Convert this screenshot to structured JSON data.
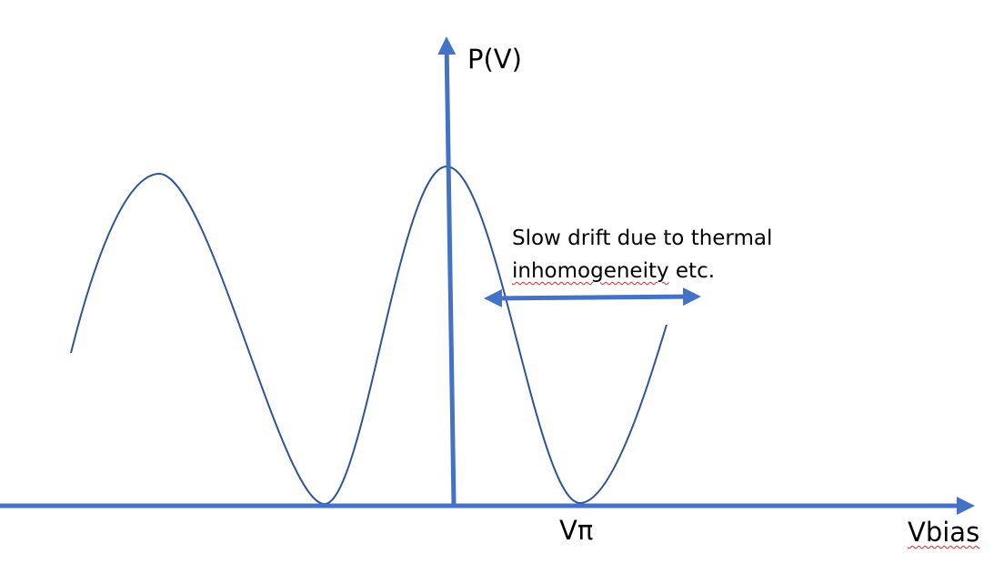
{
  "diagram": {
    "y_axis_label": "P(V)",
    "x_axis_label": "Vbias",
    "vpi_label": "Vπ",
    "annotation": {
      "line1": "Slow drift due to thermal",
      "line2_word": "inhomogeneity",
      "line2_rest": " etc."
    },
    "colors": {
      "axis": "#4472c4",
      "curve": "#2f5597",
      "text": "#000000",
      "spellcheck": "#d03030"
    }
  }
}
